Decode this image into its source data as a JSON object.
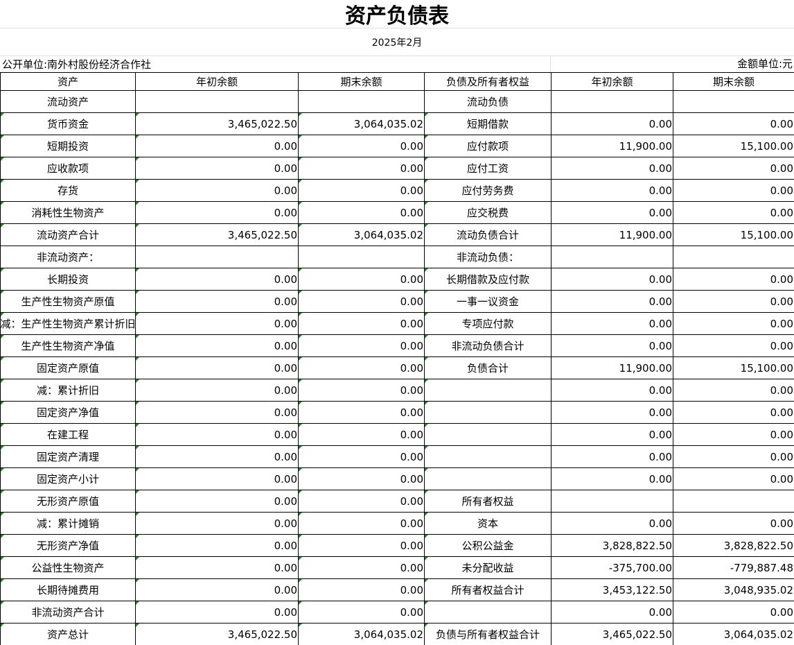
{
  "title": "资产负债表",
  "period": "2025年2月",
  "unit_left": "公开单位:南外村股份经济合作社",
  "unit_right": "金额单位:元",
  "headers": [
    "资产",
    "年初余额",
    "期末余额",
    "负债及所有者权益",
    "年初余额",
    "期末余额"
  ],
  "rows": [
    [
      "流动资产",
      "",
      "",
      "流动负债",
      "",
      ""
    ],
    [
      "货币资金",
      "3,465,022.50",
      "3,064,035.02",
      "短期借款",
      "0.00",
      "0.00"
    ],
    [
      "短期投资",
      "0.00",
      "0.00",
      "应付款项",
      "11,900.00",
      "15,100.00"
    ],
    [
      "应收款项",
      "0.00",
      "0.00",
      "应付工资",
      "0.00",
      "0.00"
    ],
    [
      "存货",
      "0.00",
      "0.00",
      "应付劳务费",
      "0.00",
      "0.00"
    ],
    [
      "消耗性生物资产",
      "0.00",
      "0.00",
      "应交税费",
      "0.00",
      "0.00"
    ],
    [
      "流动资产合计",
      "3,465,022.50",
      "3,064,035.02",
      "流动负债合计",
      "11,900.00",
      "15,100.00"
    ],
    [
      "非流动资产：",
      "",
      "",
      "非流动负债：",
      "",
      ""
    ],
    [
      "长期投资",
      "0.00",
      "0.00",
      "长期借款及应付款",
      "0.00",
      "0.00"
    ],
    [
      "生产性生物资产原值",
      "0.00",
      "0.00",
      "一事一议资金",
      "0.00",
      "0.00"
    ],
    [
      "减：生产性生物资产累计折旧",
      "0.00",
      "0.00",
      "专项应付款",
      "0.00",
      "0.00"
    ],
    [
      "生产性生物资产净值",
      "0.00",
      "0.00",
      "非流动负债合计",
      "0.00",
      "0.00"
    ],
    [
      "固定资产原值",
      "0.00",
      "0.00",
      "负债合计",
      "11,900.00",
      "15,100.00"
    ],
    [
      "减：累计折旧",
      "0.00",
      "0.00",
      "",
      "0.00",
      "0.00"
    ],
    [
      "固定资产净值",
      "0.00",
      "0.00",
      "",
      "0.00",
      "0.00"
    ],
    [
      "在建工程",
      "0.00",
      "0.00",
      "",
      "0.00",
      "0.00"
    ],
    [
      "固定资产清理",
      "0.00",
      "0.00",
      "",
      "0.00",
      "0.00"
    ],
    [
      "固定资产小计",
      "0.00",
      "0.00",
      "",
      "0.00",
      "0.00"
    ],
    [
      "无形资产原值",
      "0.00",
      "0.00",
      "所有者权益",
      "",
      ""
    ],
    [
      "减：累计摊销",
      "0.00",
      "0.00",
      "资本",
      "0.00",
      "0.00"
    ],
    [
      "无形资产净值",
      "0.00",
      "0.00",
      "公积公益金",
      "3,828,822.50",
      "3,828,822.50"
    ],
    [
      "公益性生物资产",
      "0.00",
      "0.00",
      "未分配收益",
      "-375,700.00",
      "-779,887.48"
    ],
    [
      "长期待摊费用",
      "0.00",
      "0.00",
      "所有者权益合计",
      "3,453,122.50",
      "3,048,935.02"
    ],
    [
      "非流动资产合计",
      "0.00",
      "0.00",
      "",
      "0.00",
      "0.00"
    ],
    [
      "资产总计",
      "3,465,022.50",
      "3,064,035.02",
      "负债与所有者权益合计",
      "3,465,022.50",
      "3,064,035.02"
    ]
  ],
  "colors": {
    "comment_marker": "#1a8a1a",
    "border": "#000000"
  }
}
